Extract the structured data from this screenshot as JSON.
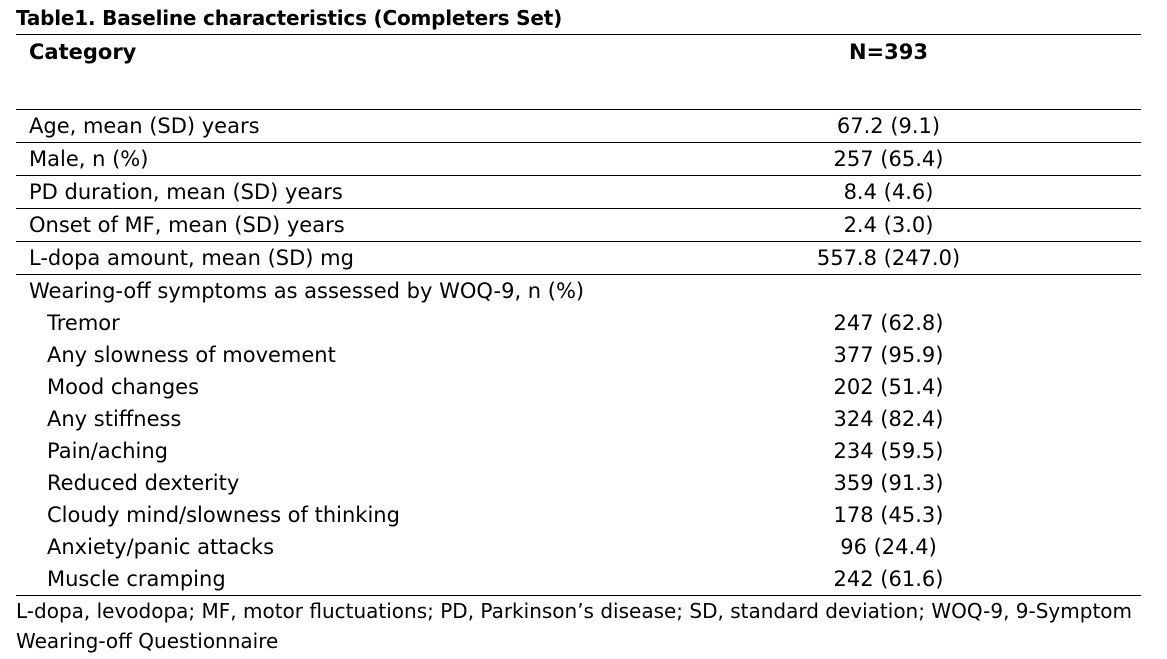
{
  "title": "Table1. Baseline characteristics (Completers Set)",
  "header": {
    "category": "Category",
    "n": "N=393"
  },
  "rows": [
    {
      "label": "Age, mean (SD) years",
      "value": "67.2 (9.1)"
    },
    {
      "label": "Male, n (%)",
      "value": "257 (65.4)"
    },
    {
      "label": "PD duration, mean (SD) years",
      "value": "8.4 (4.6)"
    },
    {
      "label": "Onset of MF, mean (SD) years",
      "value": "2.4 (3.0)"
    },
    {
      "label": "L-dopa amount, mean (SD) mg",
      "value": "557.8 (247.0)"
    }
  ],
  "woq_group": {
    "label": "Wearing-off symptoms as assessed by WOQ-9, n (%)",
    "items": [
      {
        "label": "Tremor",
        "value": "247 (62.8)"
      },
      {
        "label": "Any slowness of movement",
        "value": "377 (95.9)"
      },
      {
        "label": "Mood changes",
        "value": "202 (51.4)"
      },
      {
        "label": "Any stiffness",
        "value": "324 (82.4)"
      },
      {
        "label": "Pain/aching",
        "value": "234 (59.5)"
      },
      {
        "label": "Reduced dexterity",
        "value": "359 (91.3)"
      },
      {
        "label": "Cloudy mind/slowness of thinking",
        "value": "178 (45.3)"
      },
      {
        "label": "Anxiety/panic attacks",
        "value": "96 (24.4)"
      },
      {
        "label": "Muscle cramping",
        "value": "242 (61.6)"
      }
    ]
  },
  "footnote": "L-dopa, levodopa; MF, motor fluctuations; PD, Parkinson’s disease; SD, standard deviation; WOQ-9, 9-Symptom Wearing-off Questionnaire"
}
